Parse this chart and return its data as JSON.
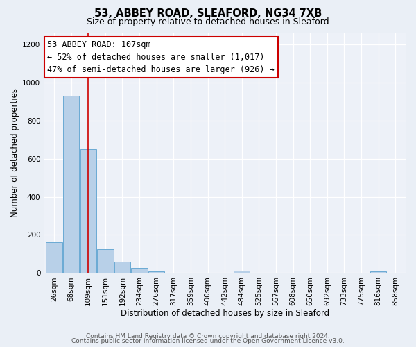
{
  "title": "53, ABBEY ROAD, SLEAFORD, NG34 7XB",
  "subtitle": "Size of property relative to detached houses in Sleaford",
  "xlabel": "Distribution of detached houses by size in Sleaford",
  "ylabel": "Number of detached properties",
  "bin_labels": [
    "26sqm",
    "68sqm",
    "109sqm",
    "151sqm",
    "192sqm",
    "234sqm",
    "276sqm",
    "317sqm",
    "359sqm",
    "400sqm",
    "442sqm",
    "484sqm",
    "525sqm",
    "567sqm",
    "608sqm",
    "650sqm",
    "692sqm",
    "733sqm",
    "775sqm",
    "816sqm",
    "858sqm"
  ],
  "bar_heights": [
    160,
    930,
    650,
    125,
    58,
    25,
    10,
    0,
    0,
    0,
    0,
    12,
    0,
    0,
    0,
    0,
    0,
    0,
    0,
    8,
    0
  ],
  "bar_color": "#b8d0e8",
  "bar_edge_color": "#6aaad4",
  "red_line_after_bar": 2,
  "annotation_title": "53 ABBEY ROAD: 107sqm",
  "annotation_line1": "← 52% of detached houses are smaller (1,017)",
  "annotation_line2": "47% of semi-detached houses are larger (926) →",
  "annotation_box_color": "#ffffff",
  "annotation_box_edge_color": "#cc0000",
  "ylim": [
    0,
    1260
  ],
  "yticks": [
    0,
    200,
    400,
    600,
    800,
    1000,
    1200
  ],
  "background_color": "#eaeff6",
  "plot_bg_color": "#edf1f8",
  "footer1": "Contains HM Land Registry data © Crown copyright and database right 2024.",
  "footer2": "Contains public sector information licensed under the Open Government Licence v3.0.",
  "title_fontsize": 10.5,
  "subtitle_fontsize": 9,
  "axis_label_fontsize": 8.5,
  "tick_fontsize": 7.5,
  "annotation_fontsize": 8.5,
  "footer_fontsize": 6.5
}
